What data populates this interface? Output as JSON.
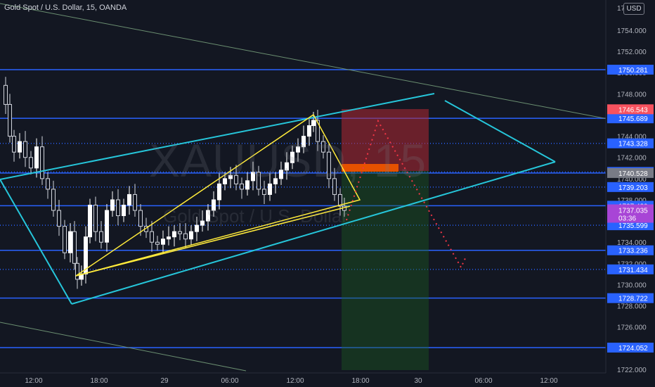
{
  "header": {
    "title": "Gold Spot / U.S. Dollar, 15, OANDA",
    "currency": "USD"
  },
  "watermark": {
    "symbol": "XAUUSD, 15",
    "name": "Gold Spot / U.S. Dollar"
  },
  "colors": {
    "background": "#131722",
    "up": "#ffffff",
    "down": "#d1d4dc",
    "blue_line": "#2962ff",
    "channel": "#26c6da",
    "wedge": "#ffeb3b",
    "stop_zone": "#b22833",
    "target_zone": "#1b5e20",
    "entry": "#e65100",
    "forecast": "#f23645",
    "trendline": "#6b8f71"
  },
  "price_axis": {
    "ticks": [
      "1754.000",
      "1752.000",
      "1750.000",
      "1748.000",
      "1746.000",
      "1744.000",
      "1742.000",
      "1740.000",
      "1738.000",
      "1734.000",
      "1732.000",
      "1730.000",
      "1728.000",
      "1726.000",
      "1724.000",
      "1722.000"
    ],
    "top_partial": "17"
  },
  "time_axis": {
    "ticks": [
      "12:00",
      "18:00",
      "29",
      "06:00",
      "12:00",
      "18:00",
      "30",
      "06:00",
      "12:00"
    ]
  },
  "levels": {
    "solid": [
      {
        "label": "1750.281",
        "price": 1750.281
      },
      {
        "label": "1745.689",
        "price": 1745.689
      },
      {
        "label": "1740.528",
        "price": 1740.528
      },
      {
        "label": "1737.439",
        "price": 1737.439
      },
      {
        "label": "1733.236",
        "price": 1733.236
      },
      {
        "label": "1728.722",
        "price": 1728.722
      },
      {
        "label": "1724.052",
        "price": 1724.052
      }
    ],
    "dotted": [
      {
        "label": "1743.328",
        "price": 1743.328
      },
      {
        "label": "1740.630",
        "price": 1740.63
      },
      {
        "label": "1739.203",
        "price": 1739.203
      },
      {
        "label": "1735.599",
        "price": 1735.599
      },
      {
        "label": "1731.434",
        "price": 1731.434
      }
    ]
  },
  "badges": {
    "stop": "1746.543",
    "entry_top": "1740.630",
    "entry": "1740.528",
    "last_price": "1737.035",
    "countdown": "03:36"
  }
}
